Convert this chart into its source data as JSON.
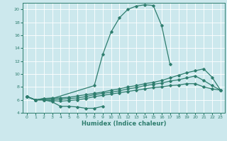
{
  "background_color": "#cce8ed",
  "line_color": "#2e7d6e",
  "grid_color": "#ffffff",
  "xlabel": "Humidex (Indice chaleur)",
  "ylim": [
    4,
    21
  ],
  "xlim": [
    -0.5,
    23.5
  ],
  "yticks": [
    4,
    6,
    8,
    10,
    12,
    14,
    16,
    18,
    20
  ],
  "xticks": [
    0,
    1,
    2,
    3,
    4,
    5,
    6,
    7,
    8,
    9,
    10,
    11,
    12,
    13,
    14,
    15,
    16,
    17,
    18,
    19,
    20,
    21,
    22,
    23
  ],
  "curve_top_x": [
    0,
    1,
    2,
    3,
    8,
    9,
    10,
    11,
    12,
    13,
    14,
    15,
    16,
    17
  ],
  "curve_top_y": [
    6.5,
    6.0,
    6.2,
    6.2,
    8.2,
    13.0,
    16.5,
    18.7,
    20.0,
    20.5,
    20.7,
    20.6,
    17.5,
    11.5
  ],
  "curve_bot_x": [
    0,
    1,
    2,
    3,
    4,
    5,
    6,
    7,
    8,
    9
  ],
  "curve_bot_y": [
    6.5,
    6.0,
    6.0,
    5.7,
    5.0,
    5.0,
    4.9,
    4.7,
    4.7,
    5.0
  ],
  "curve_c2_x": [
    0,
    1,
    2,
    3,
    4,
    5,
    6,
    7,
    8,
    9,
    10,
    11,
    12,
    13,
    14,
    15,
    16,
    17,
    18,
    19,
    20,
    21,
    22,
    23
  ],
  "curve_c2_y": [
    6.5,
    6.0,
    6.2,
    6.3,
    6.3,
    6.4,
    6.6,
    6.8,
    7.0,
    7.2,
    7.5,
    7.7,
    8.0,
    8.2,
    8.5,
    8.7,
    9.0,
    9.4,
    9.8,
    10.2,
    10.5,
    10.8,
    9.5,
    7.5
  ],
  "curve_c3_x": [
    0,
    1,
    2,
    3,
    4,
    5,
    6,
    7,
    8,
    9,
    10,
    11,
    12,
    13,
    14,
    15,
    16,
    17,
    18,
    19,
    20,
    21,
    22,
    23
  ],
  "curve_c3_y": [
    6.5,
    6.0,
    6.0,
    6.1,
    6.1,
    6.2,
    6.3,
    6.5,
    6.8,
    7.0,
    7.2,
    7.4,
    7.7,
    7.9,
    8.2,
    8.4,
    8.6,
    8.9,
    9.1,
    9.4,
    9.7,
    9.0,
    8.2,
    7.5
  ],
  "curve_c4_x": [
    0,
    1,
    2,
    3,
    4,
    5,
    6,
    7,
    8,
    9,
    10,
    11,
    12,
    13,
    14,
    15,
    16,
    17,
    18,
    19,
    20,
    21,
    22,
    23
  ],
  "curve_c4_y": [
    6.5,
    6.0,
    6.0,
    5.9,
    5.8,
    5.9,
    6.0,
    6.2,
    6.5,
    6.7,
    6.9,
    7.1,
    7.3,
    7.5,
    7.7,
    7.9,
    8.0,
    8.2,
    8.3,
    8.5,
    8.5,
    8.0,
    7.7,
    7.5
  ]
}
